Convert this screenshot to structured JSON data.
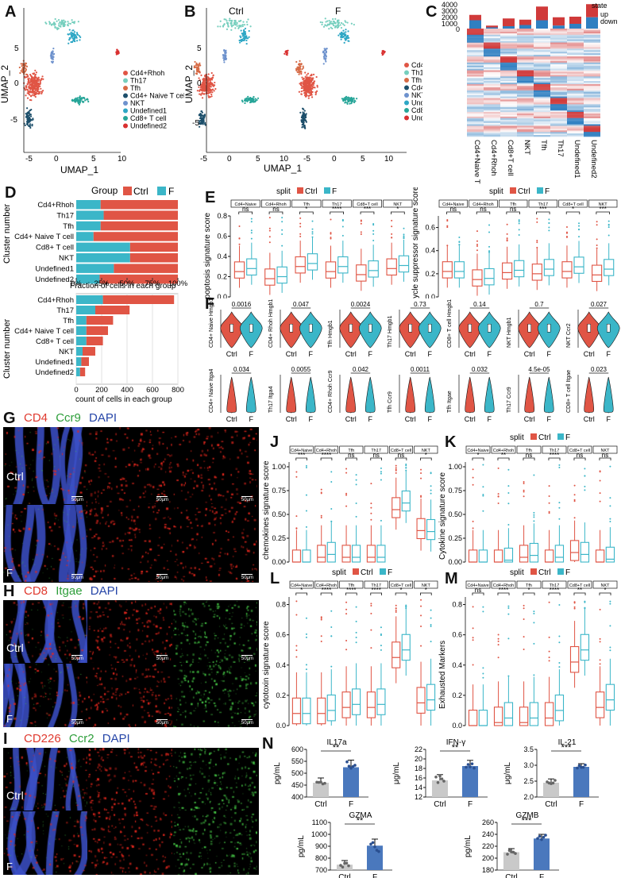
{
  "colors": {
    "ctrl": "#e05545",
    "f": "#3bb6c8",
    "bar_blue": "#4a78bd",
    "grey": "#c9c9c9"
  },
  "panel_letters": [
    "A",
    "B",
    "C",
    "D",
    "E",
    "F",
    "G",
    "H",
    "I",
    "J",
    "K",
    "L",
    "M",
    "N"
  ],
  "umap": {
    "xlabel": "UMAP_1",
    "ylabel": "UMAP_2",
    "xticks": [
      "-5",
      "0",
      "5",
      "10"
    ],
    "yticks": [
      "5",
      "0",
      "-5"
    ],
    "legend": [
      {
        "label": "Cd4+Rhoh",
        "color": "#e05545"
      },
      {
        "label": "Th17",
        "color": "#76cfbe"
      },
      {
        "label": "Tfh",
        "color": "#d66a45"
      },
      {
        "label": "Cd4+ Naive T cell",
        "color": "#1d4f6b"
      },
      {
        "label": "NKT",
        "color": "#6e92cd"
      },
      {
        "label": "Undefined1",
        "color": "#2ea7c5"
      },
      {
        "label": "Cd8+ T cell",
        "color": "#26a598"
      },
      {
        "label": "Undefined2",
        "color": "#d93030"
      }
    ],
    "split_titles": [
      "Ctrl",
      "F"
    ]
  },
  "heatmap": {
    "state_title": "state",
    "state_up": "up",
    "state_down": "down",
    "bar_ticks": [
      "4000",
      "3000",
      "2000",
      "1000",
      "0"
    ],
    "clusters": [
      "Cd4+Naive T cell",
      "Cd4+Rhoh",
      "Cd8+T cell",
      "NKT",
      "Tfh",
      "Th17",
      "Undefined1",
      "Undefined2"
    ],
    "up_counts": [
      900,
      300,
      1300,
      900,
      2300,
      1400,
      1200,
      2200
    ],
    "down_counts": [
      1400,
      200,
      400,
      600,
      1400,
      500,
      800,
      1900
    ]
  },
  "panel_d": {
    "legend_title": "Group",
    "legend": [
      "Ctrl",
      "F"
    ],
    "clusters": [
      "Cd4+Rhoh",
      "Th17",
      "Tfh",
      "Cd4+ Naive T cell",
      "Cd8+ T cell",
      "NKT",
      "Undefined1",
      "Undefined2"
    ],
    "fraction_f": [
      0.24,
      0.27,
      0.24,
      0.17,
      0.53,
      0.53,
      0.37,
      0.23
    ],
    "fraction_xlabel": "Fraction of cells in each group",
    "fraction_ticks": [
      "0%",
      "25%",
      "50%",
      "75%",
      "100%"
    ],
    "ylabel": "Cluster number",
    "count_ctrl": [
      560,
      270,
      210,
      170,
      130,
      100,
      60,
      40
    ],
    "count_f": [
      210,
      150,
      80,
      80,
      80,
      50,
      40,
      30
    ],
    "count_xlabel": "count of cells in each group",
    "count_ticks": [
      "0",
      "200",
      "400",
      "600",
      "800"
    ]
  },
  "split_legend": {
    "title": "split",
    "ctrl": "Ctrl",
    "f": "F"
  },
  "box_groups": [
    "Cd4+Naive",
    "Cd4+Rhoh",
    "Tfh",
    "Th17",
    "Cd8+T cell",
    "NKT"
  ],
  "panel_e": {
    "apoptosis": {
      "ylabel": "Apoptosis signature score",
      "yticks": [
        "0.0",
        "0.2",
        "0.4",
        "0.6",
        "0.8"
      ],
      "ymax": 0.8,
      "sig": [
        "ns",
        "ns",
        "*",
        "****",
        "***",
        "*"
      ],
      "medians": [
        [
          0.25,
          0.28
        ],
        [
          0.18,
          0.2
        ],
        [
          0.3,
          0.33
        ],
        [
          0.25,
          0.3
        ],
        [
          0.22,
          0.26
        ],
        [
          0.28,
          0.31
        ]
      ]
    },
    "cycle": {
      "ylabel": "Cycle suppressor signature score",
      "yticks": [
        "0.0",
        "0.2",
        "0.4",
        "0.6"
      ],
      "ymax": 0.7,
      "sig": [
        "ns",
        "ns",
        "ns",
        "***",
        "*",
        "***"
      ],
      "medians": [
        [
          0.22,
          0.22
        ],
        [
          0.15,
          0.16
        ],
        [
          0.21,
          0.23
        ],
        [
          0.2,
          0.24
        ],
        [
          0.22,
          0.26
        ],
        [
          0.19,
          0.24
        ]
      ]
    }
  },
  "panel_f": {
    "xlabels": [
      "Ctrl",
      "F"
    ],
    "violins": [
      {
        "ylabel": "CD4+ Naive Hmgb1",
        "p": "0.0016"
      },
      {
        "ylabel": "CD4+ Rhoh Hmgb1",
        "p": "0.047"
      },
      {
        "ylabel": "Tfh Hmgb1",
        "p": "0.0024"
      },
      {
        "ylabel": "Th17 Hmgb1",
        "p": "0.73"
      },
      {
        "ylabel": "CD8+ T cell Hmgb1",
        "p": "0.14"
      },
      {
        "ylabel": "NKT Hmgb1",
        "p": "0.7"
      },
      {
        "ylabel": "NKT Ccr2",
        "p": "0.027"
      },
      {
        "ylabel": "CD4+ Naive Itga4",
        "p": "0.034"
      },
      {
        "ylabel": "Th17 Itga4",
        "p": "0.0055"
      },
      {
        "ylabel": "CD4+ Rhoh Ccr9",
        "p": "0.042"
      },
      {
        "ylabel": "Tfh Ccr9",
        "p": "0.0011"
      },
      {
        "ylabel": "Tfh Itgae",
        "p": "0.032"
      },
      {
        "ylabel": "Th17 Ccr9",
        "p": "4.5e-05"
      },
      {
        "ylabel": "CD8+ T cell Itgae",
        "p": "0.023"
      }
    ]
  },
  "panel_g": {
    "stains": [
      {
        "text": "CD4",
        "color": "#e03a2f"
      },
      {
        "text": "Ccr9",
        "color": "#2d9e3a"
      },
      {
        "text": "DAPI",
        "color": "#2646a8"
      }
    ],
    "row_labels": [
      "Ctrl",
      "F"
    ],
    "scale": "50μm"
  },
  "panel_h": {
    "stains": [
      {
        "text": "CD8",
        "color": "#e03a2f"
      },
      {
        "text": "Itgae",
        "color": "#2d9e3a"
      },
      {
        "text": "DAPI",
        "color": "#2646a8"
      }
    ],
    "row_labels": [
      "Ctrl",
      "F"
    ],
    "scale": "50μm"
  },
  "panel_i": {
    "stains": [
      {
        "text": "CD226",
        "color": "#e03a2f"
      },
      {
        "text": "Ccr2",
        "color": "#2d9e3a"
      },
      {
        "text": "DAPI",
        "color": "#2646a8"
      }
    ],
    "row_labels": [
      "Ctrl",
      "F"
    ],
    "scale": "50μm"
  },
  "panel_j": {
    "ylabel": "chemokines signature score",
    "yticks": [
      "0.00",
      "0.25",
      "0.50",
      "0.75",
      "1.00"
    ],
    "ymax": 1.05,
    "sig": [
      "***",
      "****",
      "ns",
      "ns",
      "ns",
      "*"
    ],
    "medians": [
      [
        0.0,
        0.0
      ],
      [
        0.05,
        0.08
      ],
      [
        0.05,
        0.05
      ],
      [
        0.05,
        0.05
      ],
      [
        0.55,
        0.62
      ],
      [
        0.33,
        0.32
      ]
    ]
  },
  "panel_k": {
    "ylabel": "Cytokine signature score",
    "yticks": [
      "0.00",
      "0.25",
      "0.50",
      "0.75",
      "1.00"
    ],
    "ymax": 1.05,
    "sig": [
      "*",
      "**",
      "ns",
      "****",
      "ns",
      "ns"
    ],
    "medians": [
      [
        0.0,
        0.0
      ],
      [
        0.0,
        0.02
      ],
      [
        0.05,
        0.07
      ],
      [
        0.0,
        0.05
      ],
      [
        0.1,
        0.08
      ],
      [
        0.0,
        0.03
      ]
    ]
  },
  "panel_l": {
    "ylabel": "cytotoxin signature score",
    "yticks": [
      "0.0",
      "0.2",
      "0.4",
      "0.6",
      "0.8"
    ],
    "ymax": 0.85,
    "sig": [
      "*",
      "****",
      "****",
      "****",
      "*",
      "*"
    ],
    "medians": [
      [
        0.08,
        0.08
      ],
      [
        0.08,
        0.1
      ],
      [
        0.12,
        0.14
      ],
      [
        0.12,
        0.14
      ],
      [
        0.45,
        0.5
      ],
      [
        0.15,
        0.17
      ]
    ]
  },
  "panel_m": {
    "ylabel": "Exhausted Markers",
    "yticks": [
      "0.0",
      "0.2",
      "0.4",
      "0.6",
      "0.8"
    ],
    "ymax": 0.85,
    "sig": [
      "ns",
      "****",
      "*",
      "****",
      "**",
      "*"
    ],
    "medians": [
      [
        0.0,
        0.0
      ],
      [
        0.02,
        0.05
      ],
      [
        0.02,
        0.05
      ],
      [
        0.05,
        0.1
      ],
      [
        0.42,
        0.5
      ],
      [
        0.12,
        0.17
      ]
    ]
  },
  "panel_n": [
    {
      "title": "IL17a",
      "ylabel": "pg/mL",
      "sig": "**",
      "yticks": [
        "400",
        "450",
        "500",
        "550",
        "600"
      ],
      "ymin": 400,
      "ymax": 600,
      "ctrl": 460,
      "f": 525,
      "ctrl_sd": 20,
      "f_sd": 30,
      "xlabels": [
        "Ctrl",
        "F"
      ]
    },
    {
      "title": "IFN-γ",
      "ylabel": "μg/mL",
      "sig": "**",
      "yticks": [
        "12",
        "14",
        "16",
        "18",
        "20",
        "22"
      ],
      "ymin": 12,
      "ymax": 22,
      "ctrl": 15.5,
      "f": 18.5,
      "ctrl_sd": 1.2,
      "f_sd": 1.2,
      "xlabels": [
        "Ctrl",
        "F"
      ]
    },
    {
      "title": "IL-21",
      "ylabel": "μg/mL",
      "sig": "***",
      "yticks": [
        "2.0",
        "2.5",
        "3.0",
        "3.5"
      ],
      "ymin": 2.0,
      "ymax": 3.5,
      "ctrl": 2.45,
      "f": 2.95,
      "ctrl_sd": 0.12,
      "f_sd": 0.1,
      "xlabels": [
        "Ctrl",
        "F"
      ]
    },
    {
      "title": "GZMA",
      "ylabel": "pg/mL",
      "sig": "**",
      "yticks": [
        "700",
        "800",
        "900",
        "1000",
        "1100"
      ],
      "ymin": 700,
      "ymax": 1100,
      "ctrl": 745,
      "f": 905,
      "ctrl_sd": 35,
      "f_sd": 55,
      "xlabels": [
        "Ctrl",
        "F"
      ]
    },
    {
      "title": "GZMB",
      "ylabel": "pg/mL",
      "sig": "***",
      "yticks": [
        "180",
        "200",
        "220",
        "240",
        "260"
      ],
      "ymin": 180,
      "ymax": 260,
      "ctrl": 210,
      "f": 233,
      "ctrl_sd": 6,
      "f_sd": 7,
      "xlabels": [
        "Ctrl",
        "F"
      ]
    }
  ]
}
